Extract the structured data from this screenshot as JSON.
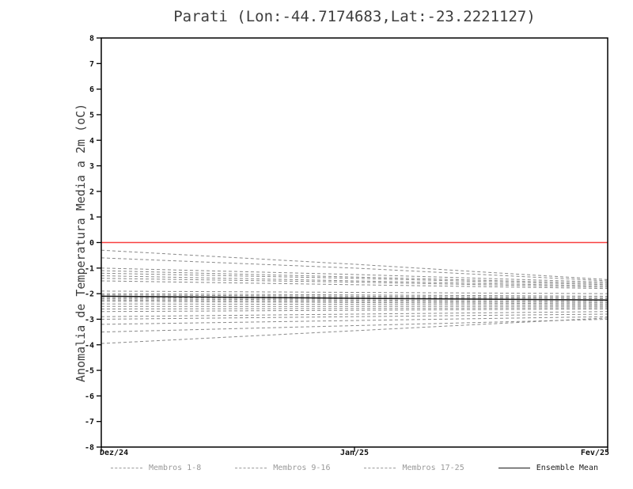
{
  "chart_data": {
    "type": "line",
    "title": "Parati (Lon:-44.7174683,Lat:-23.2221127)",
    "ylabel": "Anomalia de Temperatura Media a 2m (oC)",
    "x_ticks": [
      "Dez/24",
      "Jan/25",
      "Fev/25"
    ],
    "ylim": [
      -8,
      8
    ],
    "y_tick_step": 1,
    "grid": false,
    "legend_position": "bottom",
    "colors": {
      "zero_line": "#f84040",
      "member_line": "#8a8a8a",
      "mean_line": "#1a1a1a",
      "axis": "#000000"
    },
    "series": [
      {
        "name": "Membro 1",
        "values": [
          -0.3,
          -0.85,
          -1.45
        ]
      },
      {
        "name": "Membro 2",
        "values": [
          -0.6,
          -1.0,
          -1.5
        ]
      },
      {
        "name": "Membro 3",
        "values": [
          -1.0,
          -1.25,
          -1.55
        ]
      },
      {
        "name": "Membro 4",
        "values": [
          -1.1,
          -1.35,
          -1.6
        ]
      },
      {
        "name": "Membro 5",
        "values": [
          -1.2,
          -1.4,
          -1.65
        ]
      },
      {
        "name": "Membro 6",
        "values": [
          -1.3,
          -1.5,
          -1.7
        ]
      },
      {
        "name": "Membro 7",
        "values": [
          -1.4,
          -1.55,
          -1.75
        ]
      },
      {
        "name": "Membro 8",
        "values": [
          -1.5,
          -1.65,
          -1.8
        ]
      },
      {
        "name": "Membro 9",
        "values": [
          -1.9,
          -1.95,
          -2.0
        ]
      },
      {
        "name": "Membro 10",
        "values": [
          -2.0,
          -2.05,
          -2.1
        ]
      },
      {
        "name": "Membro 11",
        "values": [
          -2.05,
          -2.1,
          -2.15
        ]
      },
      {
        "name": "Membro 12",
        "values": [
          -2.1,
          -2.15,
          -2.2
        ]
      },
      {
        "name": "Membro 13",
        "values": [
          -2.15,
          -2.2,
          -2.25
        ]
      },
      {
        "name": "Membro 14",
        "values": [
          -2.2,
          -2.25,
          -2.3
        ]
      },
      {
        "name": "Membro 15",
        "values": [
          -2.25,
          -2.3,
          -2.35
        ]
      },
      {
        "name": "Membro 16",
        "values": [
          -2.3,
          -2.35,
          -2.4
        ]
      },
      {
        "name": "Membro 17",
        "values": [
          -2.4,
          -2.42,
          -2.45
        ]
      },
      {
        "name": "Membro 18",
        "values": [
          -2.5,
          -2.5,
          -2.5
        ]
      },
      {
        "name": "Membro 19",
        "values": [
          -2.6,
          -2.58,
          -2.55
        ]
      },
      {
        "name": "Membro 20",
        "values": [
          -2.7,
          -2.65,
          -2.6
        ]
      },
      {
        "name": "Membro 21",
        "values": [
          -2.9,
          -2.8,
          -2.7
        ]
      },
      {
        "name": "Membro 22",
        "values": [
          -3.0,
          -2.9,
          -2.8
        ]
      },
      {
        "name": "Membro 23",
        "values": [
          -3.2,
          -3.05,
          -2.9
        ]
      },
      {
        "name": "Membro 24",
        "values": [
          -3.5,
          -3.25,
          -3.0
        ]
      },
      {
        "name": "Membro 25",
        "values": [
          -3.95,
          -3.45,
          -2.95
        ]
      }
    ],
    "ensemble_mean": {
      "name": "Ensemble Mean",
      "values": [
        -2.1,
        -2.18,
        -2.25
      ]
    },
    "zero_line_value": 0,
    "legend": [
      {
        "label": "Membros 1-8",
        "style": "dashed"
      },
      {
        "label": "Membros 9-16",
        "style": "dashed"
      },
      {
        "label": "Membros 17-25",
        "style": "dashed"
      },
      {
        "label": "Ensemble Mean",
        "style": "solid"
      }
    ]
  }
}
